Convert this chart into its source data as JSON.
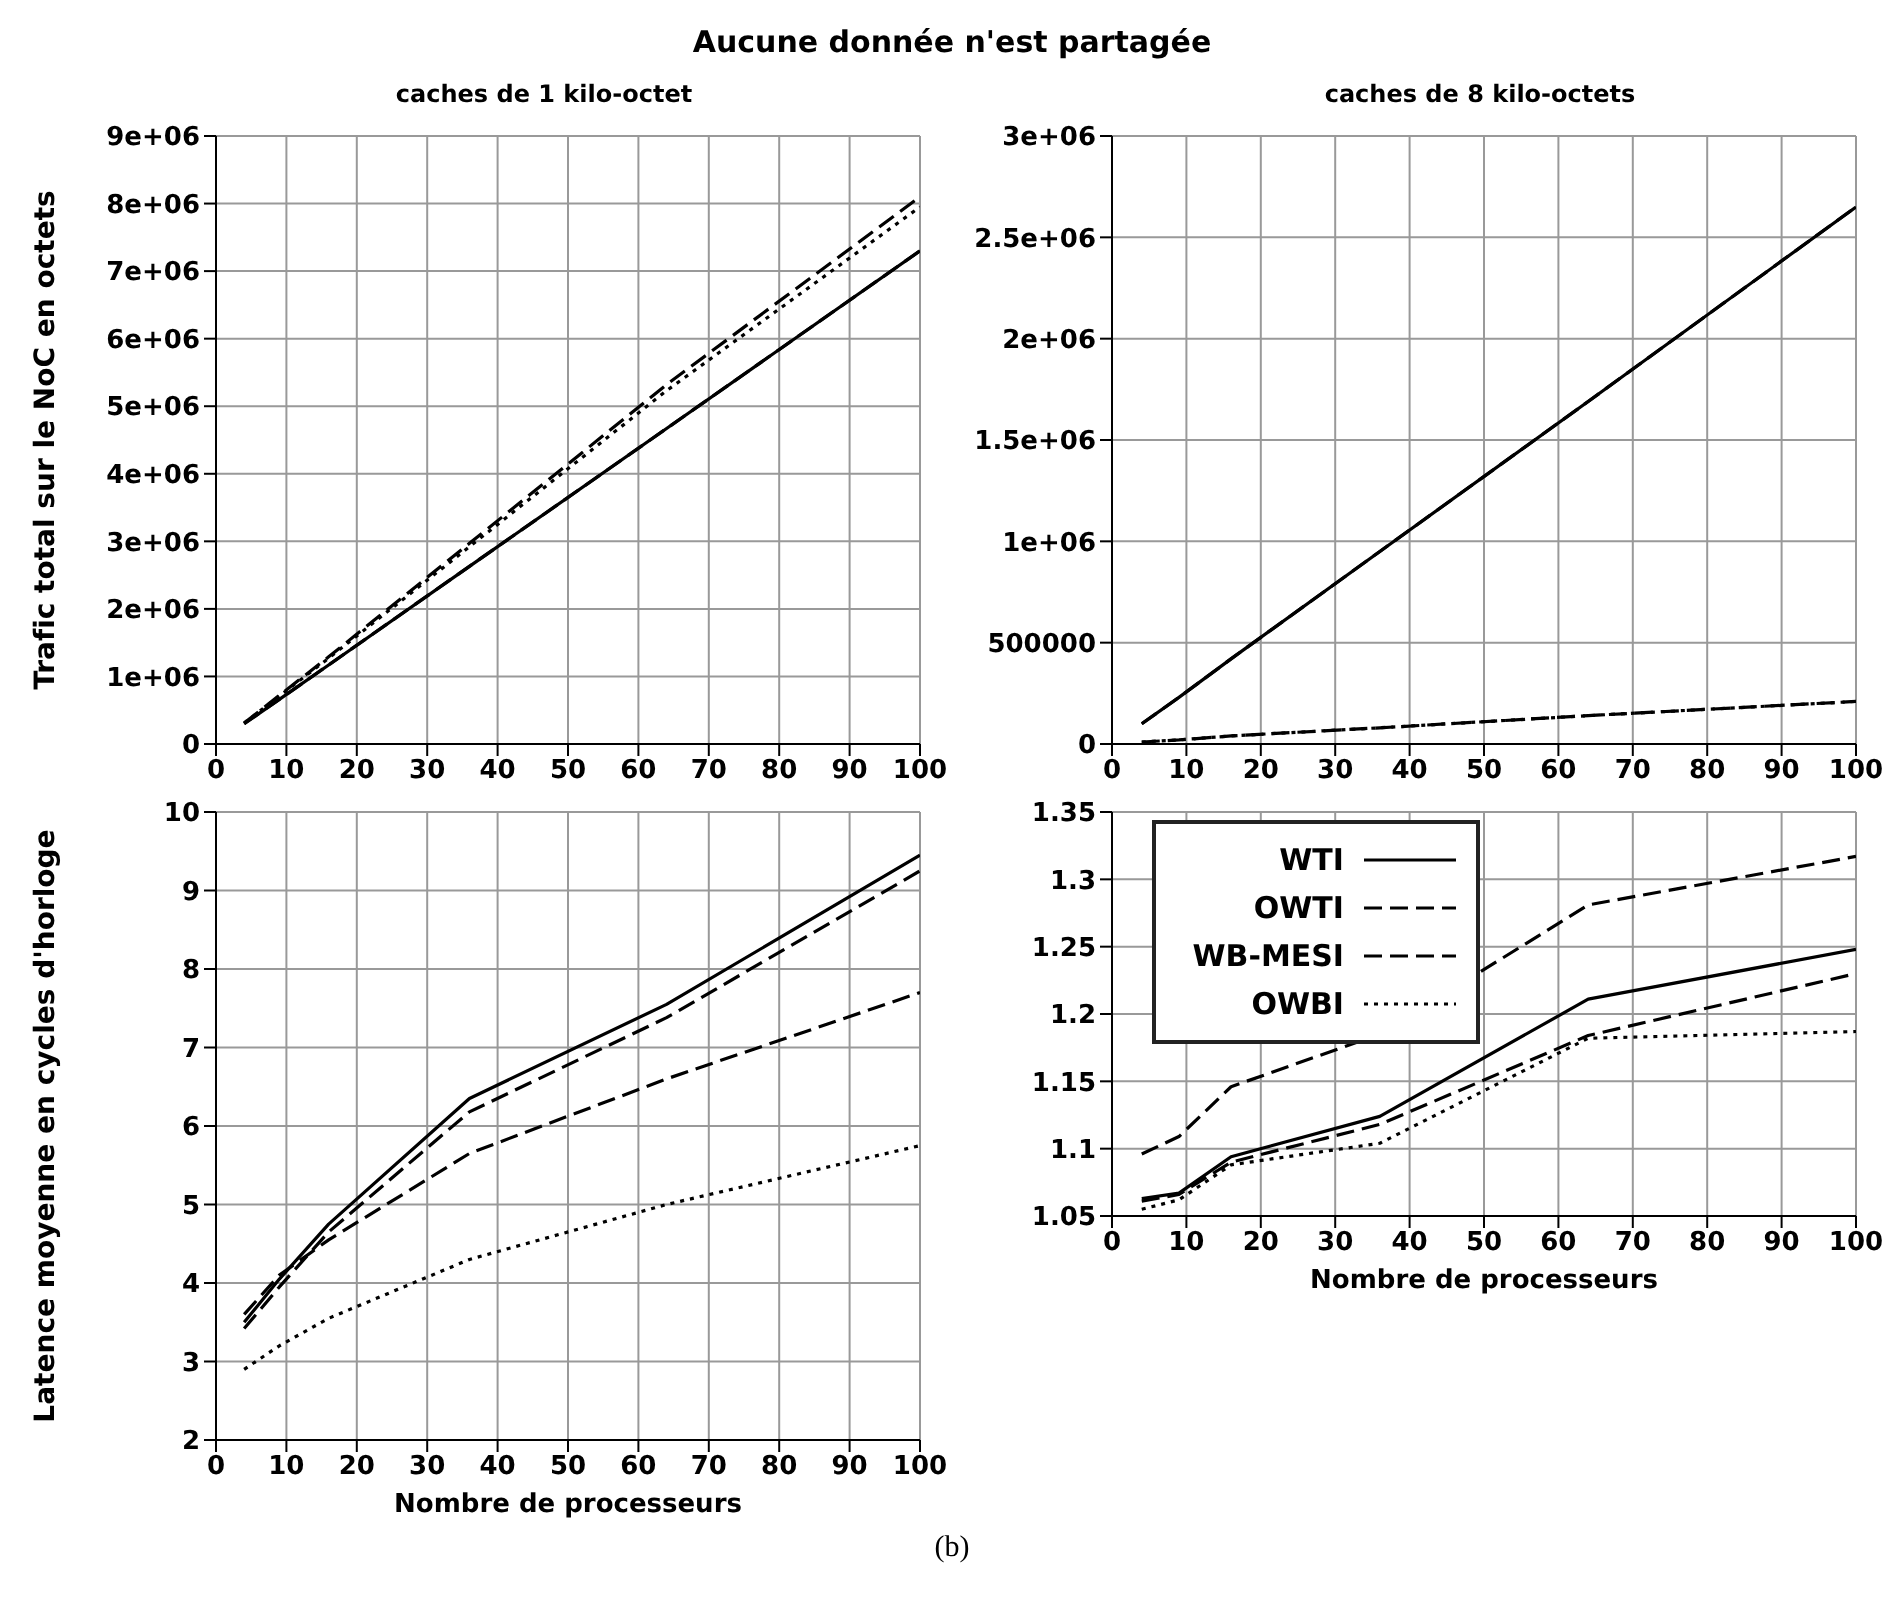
{
  "chart_data": [
    {
      "type": "line",
      "title": "caches de 1 kilo-octet",
      "ylabel": "Trafic total sur le NoC en octets",
      "annotations": [
        "Aucune donnée n'est partagée",
        "(b)"
      ],
      "x": [
        4,
        9,
        16,
        36,
        64,
        100
      ],
      "xlim": [
        0,
        100
      ],
      "xticks": [
        0,
        10,
        20,
        30,
        40,
        50,
        60,
        70,
        80,
        90,
        100
      ],
      "ylim": [
        0,
        9000000
      ],
      "yticks": [
        0,
        {
          "value": 1000000,
          "label": "1e+06"
        },
        {
          "value": 2000000,
          "label": "2e+06"
        },
        {
          "value": 3000000,
          "label": "3e+06"
        },
        {
          "value": 4000000,
          "label": "4e+06"
        },
        {
          "value": 5000000,
          "label": "5e+06"
        },
        {
          "value": 6000000,
          "label": "6e+06"
        },
        {
          "value": 7000000,
          "label": "7e+06"
        },
        {
          "value": 8000000,
          "label": "8e+06"
        },
        {
          "value": 9000000,
          "label": "9e+06"
        }
      ],
      "grid": true,
      "legend": false,
      "marker": "none",
      "series": [
        {
          "color": "#000000",
          "line_style": "solid",
          "values": [
            300000,
            660000,
            1170000,
            2630000,
            4670000,
            7300000
          ]
        },
        {
          "color": "#000000",
          "line_style": "dashed",
          "values": [
            300000,
            660000,
            1170000,
            2630000,
            4670000,
            7300000
          ]
        },
        {
          "color": "#000000",
          "line_style": "dashed",
          "values": [
            310000,
            720000,
            1290000,
            2970000,
            5320000,
            8100000
          ]
        },
        {
          "color": "#000000",
          "line_style": "dotted",
          "values": [
            310000,
            710000,
            1270000,
            2920000,
            5230000,
            7950000
          ]
        }
      ]
    },
    {
      "type": "line",
      "title": "caches de 8 kilo-octets",
      "x": [
        4,
        9,
        16,
        36,
        64,
        100
      ],
      "xlim": [
        0,
        100
      ],
      "xticks": [
        0,
        10,
        20,
        30,
        40,
        50,
        60,
        70,
        80,
        90,
        100
      ],
      "ylim": [
        0,
        3000000
      ],
      "yticks": [
        0,
        500000,
        {
          "value": 1000000,
          "label": "1e+06"
        },
        {
          "value": 1500000,
          "label": "1.5e+06"
        },
        {
          "value": 2000000,
          "label": "2e+06"
        },
        {
          "value": 2500000,
          "label": "2.5e+06"
        },
        {
          "value": 3000000,
          "label": "3e+06"
        }
      ],
      "grid": true,
      "legend": false,
      "marker": "none",
      "series": [
        {
          "color": "#000000",
          "line_style": "solid",
          "values": [
            100000,
            230000,
            420000,
            950000,
            1690000,
            2650000
          ]
        },
        {
          "color": "#000000",
          "line_style": "dashed",
          "values": [
            100000,
            230000,
            420000,
            950000,
            1690000,
            2650000
          ]
        },
        {
          "color": "#000000",
          "line_style": "dashed",
          "values": [
            10000,
            20000,
            40000,
            80000,
            140000,
            210000
          ]
        },
        {
          "color": "#000000",
          "line_style": "dotted",
          "values": [
            10000,
            20000,
            40000,
            80000,
            140000,
            210000
          ]
        }
      ]
    },
    {
      "type": "line",
      "xlabel": "Nombre de processeurs",
      "ylabel": "Latence moyenne en cycles d'horloge",
      "x": [
        4,
        9,
        16,
        36,
        64,
        100
      ],
      "xlim": [
        0,
        100
      ],
      "xticks": [
        0,
        10,
        20,
        30,
        40,
        50,
        60,
        70,
        80,
        90,
        100
      ],
      "ylim": [
        2,
        10
      ],
      "yticks": [
        2,
        3,
        4,
        5,
        6,
        7,
        8,
        9,
        10
      ],
      "grid": true,
      "legend": false,
      "marker": "none",
      "series": [
        {
          "color": "#000000",
          "line_style": "solid",
          "values": [
            3.5,
            4.05,
            4.75,
            6.35,
            7.55,
            9.45
          ]
        },
        {
          "color": "#000000",
          "line_style": "dashed",
          "values": [
            3.42,
            3.95,
            4.65,
            6.18,
            7.38,
            9.25
          ]
        },
        {
          "color": "#000000",
          "line_style": "dashed",
          "values": [
            3.6,
            4.1,
            4.55,
            5.65,
            6.6,
            7.7
          ]
        },
        {
          "color": "#000000",
          "line_style": "dotted",
          "values": [
            2.9,
            3.2,
            3.55,
            4.3,
            5.0,
            5.75
          ]
        }
      ]
    },
    {
      "type": "line",
      "xlabel": "Nombre de processeurs",
      "x": [
        4,
        9,
        16,
        36,
        64,
        100
      ],
      "xlim": [
        0,
        100
      ],
      "xticks": [
        0,
        10,
        20,
        30,
        40,
        50,
        60,
        70,
        80,
        90,
        100
      ],
      "ylim": [
        1.05,
        1.35
      ],
      "yticks": [
        1.05,
        1.1,
        1.15,
        1.2,
        1.25,
        1.3,
        1.35
      ],
      "grid": true,
      "legend": "top left",
      "marker": "none",
      "series": [
        {
          "name": "WTI",
          "color": "#000000",
          "line_style": "solid",
          "values": [
            1.063,
            1.067,
            1.094,
            1.124,
            1.211,
            1.248
          ]
        },
        {
          "name": "OWTI",
          "color": "#000000",
          "line_style": "dashed",
          "values": [
            1.061,
            1.066,
            1.09,
            1.118,
            1.184,
            1.23
          ]
        },
        {
          "name": "WB-MESI",
          "color": "#000000",
          "line_style": "dashed",
          "values": [
            1.096,
            1.109,
            1.146,
            1.185,
            1.281,
            1.317
          ]
        },
        {
          "name": "OWBI",
          "color": "#000000",
          "line_style": "dotted",
          "values": [
            1.055,
            1.062,
            1.088,
            1.104,
            1.182,
            1.187
          ]
        }
      ]
    }
  ]
}
